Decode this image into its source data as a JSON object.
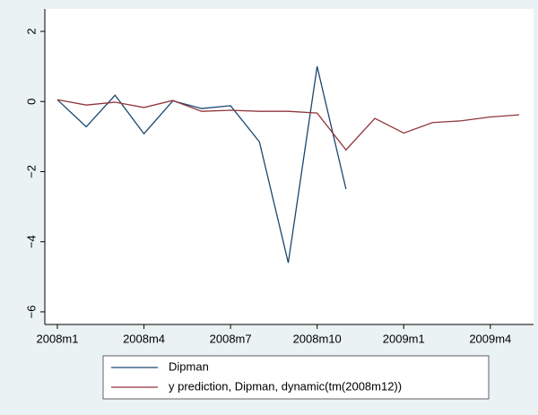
{
  "chart_data": {
    "type": "line",
    "categories": [
      "2008m1",
      null,
      null,
      "2008m4",
      null,
      null,
      "2008m7",
      null,
      null,
      "2008m10",
      null,
      null,
      "2009m1",
      null,
      null,
      "2009m4",
      null
    ],
    "series": [
      {
        "name": "Dipman",
        "color": "#1a476f",
        "values": [
          0.05,
          -0.72,
          0.18,
          -0.92,
          0.02,
          -0.2,
          -0.12,
          -1.15,
          -4.6,
          1.0,
          -2.5,
          null,
          null,
          null,
          null,
          null,
          null
        ]
      },
      {
        "name": "y prediction, Dipman, dynamic(tm(2008m12))",
        "color": "#90353b",
        "values": [
          0.05,
          -0.1,
          -0.02,
          -0.17,
          0.03,
          -0.28,
          -0.25,
          -0.28,
          -0.28,
          -0.33,
          -1.38,
          -0.48,
          -0.9,
          -0.6,
          -0.55,
          -0.44,
          -0.38
        ]
      }
    ],
    "ylim": [
      -6.36,
      2.64
    ],
    "yticks": [
      {
        "value": -6,
        "label": "−6"
      },
      {
        "value": -4,
        "label": "−4"
      },
      {
        "value": -2,
        "label": "−2"
      },
      0,
      2
    ],
    "grid": false
  }
}
